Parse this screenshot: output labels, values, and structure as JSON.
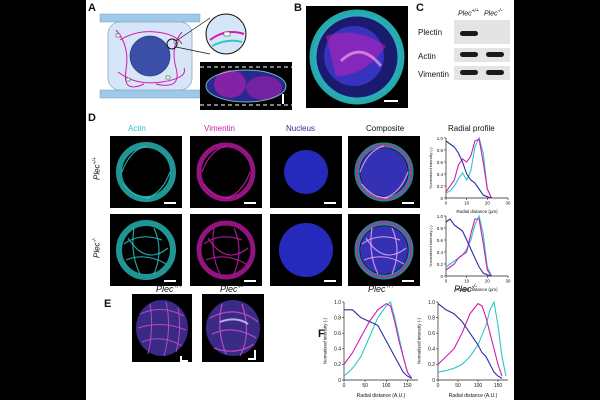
{
  "figure": {
    "panels": {
      "A": "A",
      "B": "B",
      "C": "C",
      "D": "D",
      "E": "E",
      "F": "F"
    },
    "blot": {
      "lane_headers": [
        "Plec",
        "Plec"
      ],
      "lane_sups": [
        "+/+",
        "-/-"
      ],
      "rows": [
        "Plectin",
        "Actin",
        "Vimentin"
      ]
    },
    "channels": {
      "actin": "Actin",
      "vimentin": "Vimentin",
      "nucleus": "Nucleus",
      "composite": "Composite"
    },
    "channel_colors": {
      "actin": "#2cc7c7",
      "vimentin": "#d11bb5",
      "nucleus": "#2b2ea0"
    },
    "radial_title": "Radial profile",
    "rows": {
      "wt": "Plec",
      "wt_sup": "+/+",
      "ko": "Plec",
      "ko_sup": "-/-"
    },
    "e_titles": {
      "wt": "Plec",
      "wt_sup": "+/+",
      "ko": "Plec",
      "ko_sup": "-/-"
    },
    "f_titles": {
      "wt": "Plec",
      "wt_sup": "+/+",
      "ko": "Plec",
      "ko_sup": "-/-"
    }
  },
  "chart_data": [
    {
      "id": "D-top",
      "type": "line",
      "xlabel": "Radial distance (µm)",
      "ylabel": "Normalized intensity (-)",
      "xlim": [
        0,
        30
      ],
      "ylim": [
        0,
        1
      ],
      "xticks": [
        "0",
        "10",
        "20",
        "30"
      ],
      "yticks": [
        "0",
        "0.2",
        "0.4",
        "0.6",
        "0.8",
        "1.0"
      ],
      "series": [
        {
          "color": "#2cc7c7",
          "x": [
            0,
            2,
            4,
            6,
            8,
            10,
            12,
            14,
            16,
            18,
            20,
            22
          ],
          "y": [
            0.08,
            0.12,
            0.2,
            0.32,
            0.42,
            0.3,
            0.45,
            0.85,
            1.0,
            0.75,
            0.15,
            0.0
          ]
        },
        {
          "color": "#d11bb5",
          "x": [
            0,
            2,
            4,
            6,
            8,
            10,
            12,
            14,
            16,
            18,
            20,
            22
          ],
          "y": [
            0.1,
            0.2,
            0.3,
            0.55,
            0.65,
            0.6,
            0.7,
            0.95,
            0.98,
            0.6,
            0.15,
            0.0
          ]
        },
        {
          "color": "#2b2ea0",
          "x": [
            0,
            2,
            4,
            6,
            8,
            10,
            12,
            14,
            16,
            18,
            20,
            22
          ],
          "y": [
            0.95,
            0.9,
            0.85,
            0.75,
            0.6,
            0.4,
            0.3,
            0.25,
            0.15,
            0.05,
            0.02,
            0.0
          ]
        }
      ]
    },
    {
      "id": "D-bottom",
      "type": "line",
      "xlabel": "Radial distance (µm)",
      "ylabel": "Normalized intensity (-)",
      "xlim": [
        0,
        30
      ],
      "ylim": [
        0,
        1
      ],
      "xticks": [
        "0",
        "10",
        "20",
        "30"
      ],
      "yticks": [
        "0",
        "0.2",
        "0.4",
        "0.6",
        "0.8",
        "1.0"
      ],
      "series": [
        {
          "color": "#2cc7c7",
          "x": [
            0,
            2,
            4,
            6,
            8,
            10,
            12,
            14,
            16,
            18,
            20,
            22
          ],
          "y": [
            0.15,
            0.2,
            0.25,
            0.3,
            0.35,
            0.45,
            0.6,
            0.85,
            1.0,
            0.7,
            0.15,
            0.0
          ]
        },
        {
          "color": "#d11bb5",
          "x": [
            0,
            2,
            4,
            6,
            8,
            10,
            12,
            14,
            16,
            18,
            20,
            22
          ],
          "y": [
            0.1,
            0.15,
            0.2,
            0.3,
            0.35,
            0.4,
            0.7,
            0.95,
            0.95,
            0.55,
            0.1,
            0.0
          ]
        },
        {
          "color": "#2b2ea0",
          "x": [
            0,
            2,
            4,
            6,
            8,
            10,
            12,
            14,
            16,
            18,
            20,
            22
          ],
          "y": [
            0.9,
            0.95,
            0.85,
            0.8,
            0.75,
            0.6,
            0.45,
            0.3,
            0.15,
            0.05,
            0.02,
            0.0
          ]
        }
      ]
    },
    {
      "id": "F-wt",
      "type": "line",
      "xlabel": "Radial distance (A.U.)",
      "ylabel": "Normalized intensity (-)",
      "xlim": [
        0,
        175
      ],
      "ylim": [
        0,
        1
      ],
      "xticks": [
        "0",
        "50",
        "100",
        "150"
      ],
      "yticks": [
        "0",
        "0.2",
        "0.4",
        "0.6",
        "0.8",
        "1.0"
      ],
      "series": [
        {
          "color": "#2cc7c7",
          "x": [
            0,
            20,
            40,
            60,
            80,
            100,
            110,
            120,
            130,
            140,
            150,
            160
          ],
          "y": [
            0.05,
            0.15,
            0.3,
            0.55,
            0.8,
            0.95,
            1.0,
            0.8,
            0.55,
            0.3,
            0.1,
            0.02
          ]
        },
        {
          "color": "#d11bb5",
          "x": [
            0,
            20,
            40,
            60,
            80,
            100,
            110,
            120,
            130,
            140,
            150,
            160
          ],
          "y": [
            0.2,
            0.35,
            0.55,
            0.75,
            0.9,
            0.98,
            0.95,
            0.75,
            0.5,
            0.3,
            0.1,
            0.02
          ]
        },
        {
          "color": "#2b2ea0",
          "x": [
            0,
            20,
            40,
            60,
            80,
            100,
            110,
            120,
            130,
            140,
            150,
            160
          ],
          "y": [
            0.9,
            0.9,
            0.8,
            0.75,
            0.7,
            0.5,
            0.4,
            0.3,
            0.2,
            0.1,
            0.05,
            0.02
          ]
        }
      ]
    },
    {
      "id": "F-ko",
      "type": "line",
      "xlabel": "Radial distance (A.U.)",
      "ylabel": "Normalized intensity (-)",
      "xlim": [
        0,
        175
      ],
      "ylim": [
        0,
        1
      ],
      "xticks": [
        "0",
        "50",
        "100",
        "150"
      ],
      "yticks": [
        "0",
        "0.2",
        "0.4",
        "0.6",
        "0.8",
        "1.0"
      ],
      "series": [
        {
          "color": "#2cc7c7",
          "x": [
            0,
            20,
            40,
            60,
            80,
            100,
            120,
            130,
            140,
            150,
            160,
            170
          ],
          "y": [
            0.1,
            0.12,
            0.15,
            0.2,
            0.3,
            0.45,
            0.7,
            0.9,
            1.0,
            0.7,
            0.3,
            0.05
          ]
        },
        {
          "color": "#d11bb5",
          "x": [
            0,
            20,
            40,
            60,
            80,
            100,
            110,
            120,
            130,
            140,
            150,
            160
          ],
          "y": [
            0.2,
            0.3,
            0.4,
            0.6,
            0.85,
            0.98,
            0.95,
            0.8,
            0.6,
            0.4,
            0.2,
            0.05
          ]
        },
        {
          "color": "#2b2ea0",
          "x": [
            0,
            20,
            40,
            60,
            80,
            100,
            110,
            120,
            130,
            140,
            150,
            160
          ],
          "y": [
            0.98,
            0.9,
            0.85,
            0.75,
            0.6,
            0.45,
            0.35,
            0.3,
            0.2,
            0.1,
            0.05,
            0.02
          ]
        }
      ]
    }
  ]
}
